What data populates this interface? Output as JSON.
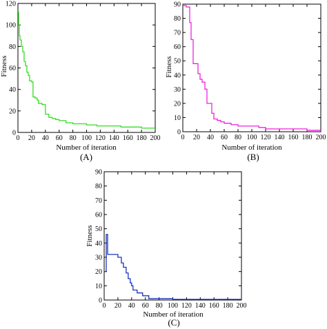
{
  "chart_data": [
    {
      "type": "line",
      "panel_label": "(A)",
      "xlabel": "Number of iteration",
      "ylabel": "Fitness",
      "xlim": [
        0,
        200
      ],
      "ylim": [
        0,
        120
      ],
      "xticks": [
        0,
        20,
        40,
        60,
        80,
        100,
        120,
        140,
        160,
        180,
        200
      ],
      "yticks": [
        0,
        20,
        40,
        60,
        80,
        100,
        120
      ],
      "grid": false,
      "series": [
        {
          "color": "#33dd22",
          "x": [
            0,
            1,
            2,
            3,
            5,
            7,
            9,
            11,
            13,
            15,
            17,
            20,
            22,
            25,
            28,
            30,
            35,
            40,
            42,
            45,
            50,
            55,
            60,
            70,
            80,
            90,
            100,
            110,
            115,
            120,
            150,
            180,
            200
          ],
          "y": [
            112,
            100,
            90,
            86,
            80,
            75,
            66,
            62,
            56,
            53,
            48,
            47,
            33,
            32,
            30,
            27,
            26,
            17,
            17,
            14,
            13,
            12,
            11,
            9,
            8,
            8,
            7,
            7,
            6,
            6,
            5,
            4,
            4
          ]
        }
      ]
    },
    {
      "type": "line",
      "panel_label": "(B)",
      "xlabel": "Number of iteration",
      "ylabel": "Fitness",
      "xlim": [
        0,
        200
      ],
      "ylim": [
        0,
        90
      ],
      "xticks": [
        0,
        20,
        40,
        60,
        80,
        100,
        120,
        140,
        160,
        180,
        200
      ],
      "yticks": [
        0,
        10,
        20,
        30,
        40,
        50,
        60,
        70,
        80,
        90
      ],
      "grid": false,
      "series": [
        {
          "color": "#ee22dd",
          "x": [
            0,
            5,
            10,
            12,
            15,
            20,
            22,
            25,
            28,
            32,
            35,
            38,
            42,
            45,
            50,
            55,
            60,
            70,
            80,
            100,
            110,
            120,
            150,
            180,
            200
          ],
          "y": [
            89,
            88,
            77,
            65,
            48,
            48,
            41,
            37,
            35,
            30,
            20,
            20,
            13,
            9,
            8,
            7,
            6,
            5,
            4,
            4,
            3,
            2,
            2,
            1,
            1
          ]
        }
      ]
    },
    {
      "type": "line",
      "panel_label": "(C)",
      "xlabel": "Number of iteration",
      "ylabel": "Fitness",
      "xlim": [
        0,
        200
      ],
      "ylim": [
        0,
        90
      ],
      "xticks": [
        0,
        20,
        40,
        60,
        80,
        100,
        120,
        140,
        160,
        180,
        200
      ],
      "yticks": [
        0,
        10,
        20,
        30,
        40,
        50,
        60,
        70,
        80,
        90
      ],
      "grid": false,
      "series": [
        {
          "color": "#1a33bb",
          "x": [
            0,
            3,
            5,
            15,
            20,
            25,
            28,
            32,
            35,
            38,
            40,
            42,
            48,
            52,
            56,
            62,
            65,
            70,
            80,
            90,
            100,
            120,
            150,
            200
          ],
          "y": [
            20,
            46,
            32,
            32,
            30,
            26,
            23,
            19,
            15,
            12,
            10,
            7,
            5,
            5,
            3,
            3,
            1,
            1,
            1,
            1,
            0.5,
            0.5,
            0.5,
            0.5
          ]
        }
      ]
    }
  ]
}
